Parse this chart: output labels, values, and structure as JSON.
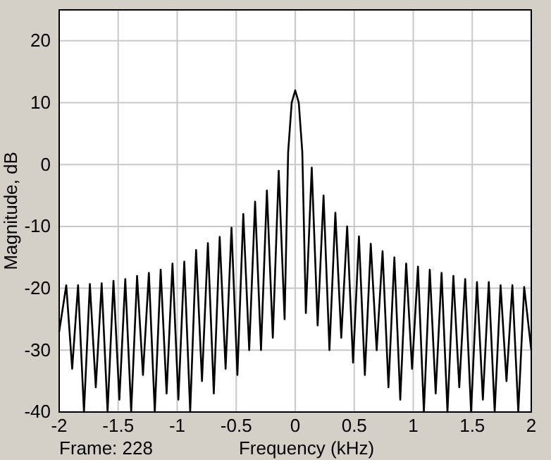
{
  "chart_data": {
    "type": "line",
    "xlabel": "Frequency (kHz)",
    "ylabel": "Magnitude, dB",
    "annotations": [
      "Frame: 228"
    ],
    "x": [
      -2,
      -1.94,
      -1.89,
      -1.84,
      -1.79,
      -1.74,
      -1.69,
      -1.64,
      -1.59,
      -1.54,
      -1.49,
      -1.44,
      -1.39,
      -1.34,
      -1.29,
      -1.24,
      -1.19,
      -1.14,
      -1.09,
      -1.04,
      -0.99,
      -0.94,
      -0.89,
      -0.84,
      -0.79,
      -0.74,
      -0.69,
      -0.64,
      -0.59,
      -0.54,
      -0.49,
      -0.44,
      -0.39,
      -0.34,
      -0.29,
      -0.24,
      -0.19,
      -0.14,
      -0.09,
      -0.06,
      -0.03,
      0,
      0.03,
      0.06,
      0.09,
      0.14,
      0.19,
      0.24,
      0.29,
      0.34,
      0.39,
      0.44,
      0.49,
      0.54,
      0.59,
      0.64,
      0.69,
      0.74,
      0.79,
      0.84,
      0.89,
      0.94,
      0.99,
      1.04,
      1.09,
      1.14,
      1.19,
      1.24,
      1.29,
      1.34,
      1.39,
      1.44,
      1.49,
      1.54,
      1.59,
      1.64,
      1.69,
      1.74,
      1.79,
      1.84,
      1.89,
      1.94,
      2
    ],
    "series": [
      {
        "color": "#000000",
        "values": [
          -27,
          -19.5,
          -33,
          -19.5,
          -40,
          -19.3,
          -36,
          -19.2,
          -40,
          -18.8,
          -38,
          -18.5,
          -40,
          -18,
          -34,
          -17.5,
          -40,
          -17,
          -37,
          -16,
          -38,
          -15.7,
          -40,
          -13.8,
          -35,
          -12.7,
          -37,
          -11.7,
          -33,
          -10.2,
          -34,
          -8,
          -30,
          -6,
          -30,
          -4.2,
          -28,
          -1,
          -25,
          2,
          10,
          12,
          10,
          2,
          -24,
          -0.5,
          -26,
          -5,
          -30,
          -7.8,
          -28,
          -10,
          -32,
          -11.6,
          -34,
          -12.8,
          -30,
          -14,
          -36,
          -15,
          -38,
          -16,
          -33,
          -16.5,
          -40,
          -17,
          -37,
          -17.5,
          -40,
          -18,
          -36,
          -18.5,
          -40,
          -19,
          -38,
          -19,
          -40,
          -19.5,
          -35,
          -19.5,
          -40,
          -19.8,
          -30
        ]
      }
    ],
    "xlim": [
      -2,
      2
    ],
    "xticks": [
      -2,
      -1.5,
      -1,
      -0.5,
      0,
      0.5,
      1,
      1.5,
      2
    ],
    "ylim": [
      -40,
      25
    ],
    "yticks": [
      -40,
      -30,
      -20,
      -10,
      0,
      10,
      20
    ],
    "grid": true,
    "marker": "none",
    "line_style": "solid"
  }
}
